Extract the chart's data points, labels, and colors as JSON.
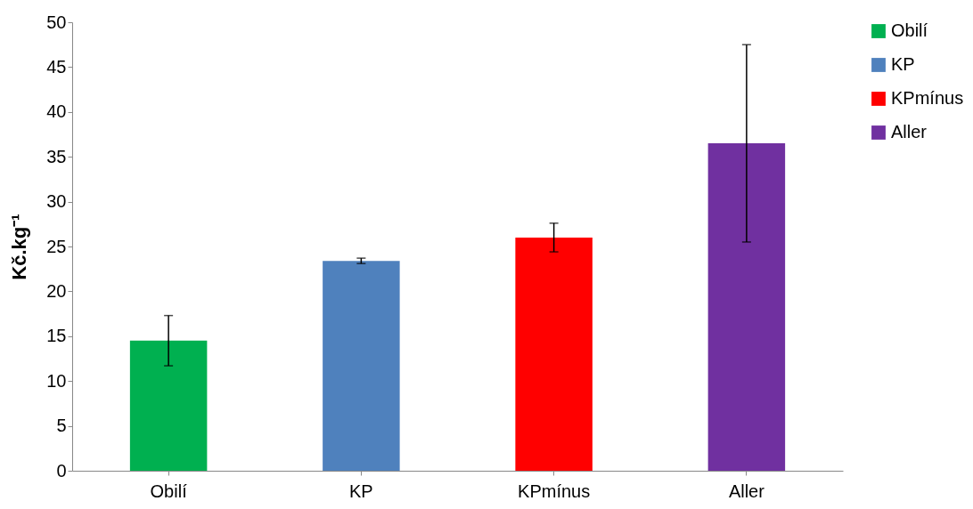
{
  "chart_data": {
    "type": "bar",
    "ylabel": "Kč.kg⁻¹",
    "categories": [
      "Obilí",
      "KP",
      "KPmínus",
      "Aller"
    ],
    "series": [
      {
        "name": "Obilí",
        "color": "#00b050",
        "values": [
          14.5,
          null,
          null,
          null
        ],
        "errors": [
          2.8,
          null,
          null,
          null
        ]
      },
      {
        "name": "KP",
        "color": "#4f81bd",
        "values": [
          null,
          23.4,
          null,
          null
        ],
        "errors": [
          null,
          0.3,
          null,
          null
        ]
      },
      {
        "name": "KPmínus",
        "color": "#ff0000",
        "values": [
          null,
          null,
          26.0,
          null
        ],
        "errors": [
          null,
          null,
          1.6,
          null
        ]
      },
      {
        "name": "Aller",
        "color": "#7030a0",
        "values": [
          null,
          null,
          null,
          36.5
        ],
        "errors": [
          null,
          null,
          null,
          11.0
        ]
      }
    ],
    "ylim": [
      0,
      50
    ],
    "yticks": [
      0,
      5,
      10,
      15,
      20,
      25,
      30,
      35,
      40,
      45,
      50
    ],
    "grid": false,
    "legend": "right"
  }
}
